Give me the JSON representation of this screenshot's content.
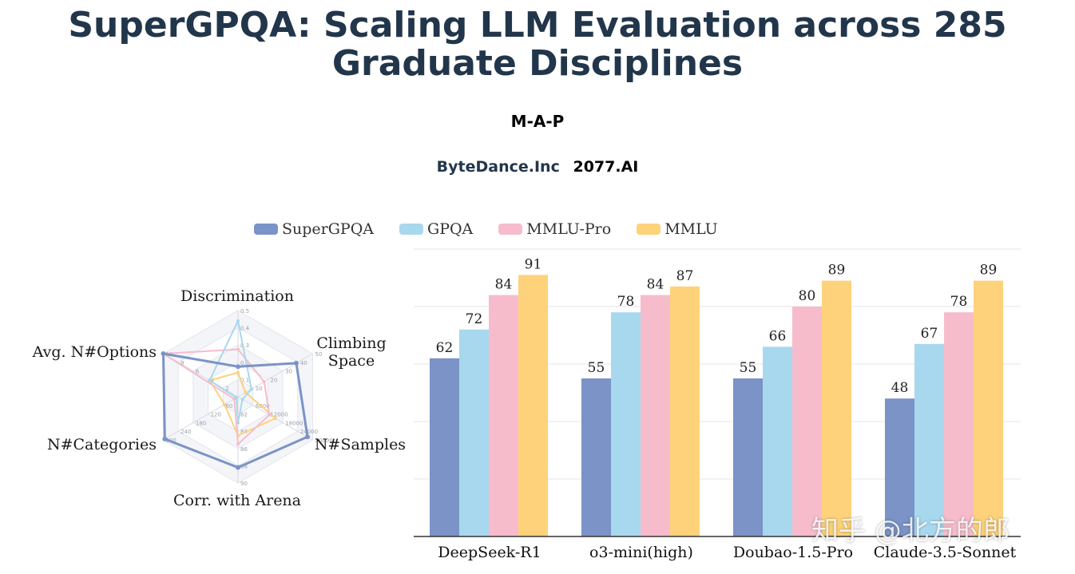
{
  "header": {
    "title_line1": "SuperGPQA: Scaling LLM Evaluation across 285",
    "title_line2": "Graduate Disciplines",
    "author": "M-A-P",
    "affiliation_1": "ByteDance.Inc",
    "affiliation_2": "2077.AI"
  },
  "colors": {
    "SuperGPQA": "#7b93c6",
    "GPQA": "#a8d8ee",
    "MMLU-Pro": "#f6bccb",
    "MMLU": "#fdd27a"
  },
  "watermark": "知乎 @北方的郎",
  "chart_data": [
    {
      "type": "radar",
      "axes": [
        "Discrimination",
        "Climbing Space",
        "N#Samples",
        "Corr. with Arena",
        "N#Categories",
        "Avg. N#Options"
      ],
      "axis_label_lines": [
        [
          "Discrimination"
        ],
        [
          "Climbing",
          "Space"
        ],
        [
          "N#Samples"
        ],
        [
          "Corr. with Arena"
        ],
        [
          "N#Categories"
        ],
        [
          "Avg. N#Options"
        ]
      ],
      "axis_ticks": [
        [
          "0.1",
          "0.2",
          "0.3",
          "0.4",
          "0.5"
        ],
        [
          "10",
          "20",
          "30",
          "40",
          "50"
        ],
        [
          "6000",
          "12000",
          "18000",
          "24000",
          "30000"
        ],
        [
          "82",
          "84",
          "86",
          "88",
          "90"
        ],
        [
          "60",
          "120",
          "180",
          "240",
          "300"
        ],
        [
          "2",
          "4",
          "6",
          "8",
          "10"
        ]
      ],
      "series": [
        {
          "name": "SuperGPQA",
          "values": [
            0.35,
            0.78,
            0.93,
            0.82,
            0.98,
            1.0
          ]
        },
        {
          "name": "GPQA",
          "values": [
            0.88,
            0.18,
            0.06,
            0.3,
            0.02,
            0.38
          ]
        },
        {
          "name": "MMLU-Pro",
          "values": [
            0.55,
            0.35,
            0.42,
            0.55,
            0.05,
            1.0
          ]
        },
        {
          "name": "MMLU",
          "values": [
            0.28,
            0.1,
            0.5,
            0.45,
            0.18,
            0.38
          ]
        }
      ]
    },
    {
      "type": "bar",
      "categories": [
        "DeepSeek-R1",
        "o3-mini(high)",
        "Doubao-1.5-Pro",
        "Claude-3.5-Sonnet"
      ],
      "series": [
        {
          "name": "SuperGPQA",
          "values": [
            62,
            55,
            55,
            48
          ]
        },
        {
          "name": "GPQA",
          "values": [
            72,
            78,
            66,
            67
          ]
        },
        {
          "name": "MMLU-Pro",
          "values": [
            84,
            84,
            80,
            78
          ]
        },
        {
          "name": "MMLU",
          "values": [
            91,
            87,
            89,
            89
          ]
        }
      ],
      "ylim": [
        0,
        100
      ],
      "grid": true,
      "legend": "top"
    }
  ]
}
